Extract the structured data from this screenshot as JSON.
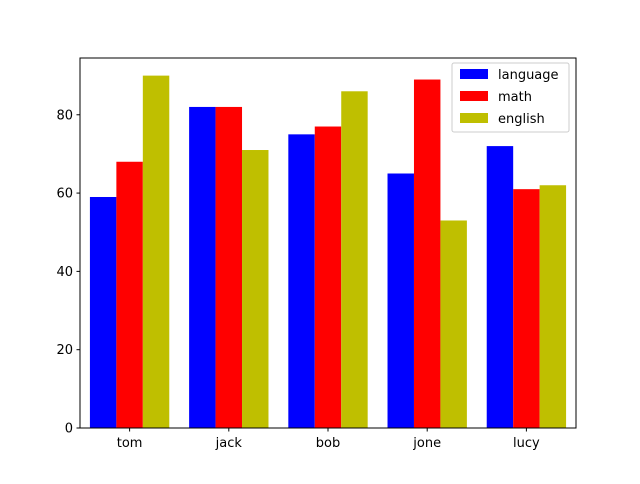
{
  "chart_data": {
    "type": "bar",
    "categories": [
      "tom",
      "jack",
      "bob",
      "jone",
      "lucy"
    ],
    "series": [
      {
        "name": "language",
        "color": "#0000ff",
        "values": [
          59,
          82,
          75,
          65,
          72
        ]
      },
      {
        "name": "math",
        "color": "#ff0000",
        "values": [
          68,
          82,
          77,
          89,
          61
        ]
      },
      {
        "name": "english",
        "color": "#bfbf00",
        "values": [
          90,
          71,
          86,
          53,
          62
        ]
      }
    ],
    "title": "",
    "xlabel": "",
    "ylabel": "",
    "ylim": [
      0,
      94.5
    ],
    "yticks": [
      0,
      20,
      40,
      60,
      80
    ],
    "grid": false,
    "legend_position": "top-right"
  }
}
